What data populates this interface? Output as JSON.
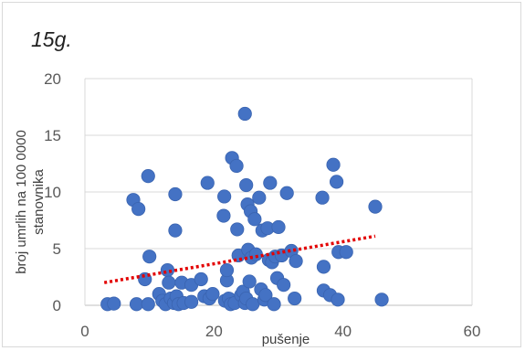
{
  "chart_data": {
    "type": "scatter",
    "title": "15g.",
    "xlabel": "pušenje",
    "ylabel_line1": "broj umrlih na 100 0000",
    "ylabel_line2": "stanovnika",
    "xlim": [
      0,
      60
    ],
    "ylim": [
      0,
      20
    ],
    "x_ticks": [
      "0",
      "20",
      "40",
      "60"
    ],
    "y_ticks": [
      "0",
      "5",
      "10",
      "15",
      "20"
    ],
    "grid": "horizontal",
    "marker_color": "#4472c4",
    "trendline": {
      "type": "linear",
      "style": "dotted",
      "color": "#e30000",
      "x": [
        3,
        45
      ],
      "y": [
        2.0,
        6.1
      ]
    },
    "points": [
      [
        3.5,
        0.1
      ],
      [
        4.5,
        0.15
      ],
      [
        7.5,
        9.3
      ],
      [
        8.0,
        0.1
      ],
      [
        8.3,
        8.5
      ],
      [
        9.3,
        2.3
      ],
      [
        9.8,
        11.4
      ],
      [
        9.8,
        0.1
      ],
      [
        10.0,
        4.3
      ],
      [
        11.5,
        1.0
      ],
      [
        12.0,
        0.4
      ],
      [
        12.5,
        0.1
      ],
      [
        12.8,
        3.1
      ],
      [
        13.0,
        2.0
      ],
      [
        13.3,
        0.6
      ],
      [
        13.8,
        0.2
      ],
      [
        14.0,
        9.8
      ],
      [
        14.0,
        6.6
      ],
      [
        14.2,
        0.8
      ],
      [
        14.5,
        0.1
      ],
      [
        15.0,
        2.0
      ],
      [
        15.3,
        0.2
      ],
      [
        16.5,
        1.8
      ],
      [
        16.5,
        0.3
      ],
      [
        18.0,
        2.3
      ],
      [
        18.5,
        0.8
      ],
      [
        19.0,
        10.8
      ],
      [
        19.3,
        0.6
      ],
      [
        19.8,
        1.0
      ],
      [
        21.5,
        7.9
      ],
      [
        21.6,
        9.6
      ],
      [
        21.7,
        0.4
      ],
      [
        22.0,
        2.2
      ],
      [
        22.0,
        3.1
      ],
      [
        22.3,
        0.6
      ],
      [
        22.6,
        0.1
      ],
      [
        22.8,
        13.0
      ],
      [
        23.2,
        0.2
      ],
      [
        23.5,
        12.3
      ],
      [
        23.6,
        6.7
      ],
      [
        23.8,
        4.4
      ],
      [
        24.2,
        0.9
      ],
      [
        24.5,
        1.2
      ],
      [
        24.8,
        16.9
      ],
      [
        24.8,
        0.2
      ],
      [
        25.0,
        0.6
      ],
      [
        25.0,
        10.6
      ],
      [
        25.2,
        8.9
      ],
      [
        25.3,
        4.9
      ],
      [
        25.5,
        2.1
      ],
      [
        25.7,
        8.3
      ],
      [
        25.8,
        4.2
      ],
      [
        26.0,
        0.1
      ],
      [
        26.3,
        7.6
      ],
      [
        26.5,
        4.5
      ],
      [
        27.0,
        9.5
      ],
      [
        27.3,
        1.4
      ],
      [
        27.5,
        6.6
      ],
      [
        27.8,
        0.5
      ],
      [
        28.0,
        0.9
      ],
      [
        28.3,
        6.8
      ],
      [
        28.5,
        4.0
      ],
      [
        28.7,
        10.8
      ],
      [
        29.0,
        3.8
      ],
      [
        29.3,
        0.1
      ],
      [
        29.5,
        4.3
      ],
      [
        29.8,
        2.4
      ],
      [
        30.0,
        6.9
      ],
      [
        30.5,
        4.4
      ],
      [
        30.8,
        1.8
      ],
      [
        31.3,
        9.9
      ],
      [
        32.0,
        4.8
      ],
      [
        32.5,
        0.6
      ],
      [
        32.7,
        3.9
      ],
      [
        36.8,
        9.5
      ],
      [
        37.0,
        3.4
      ],
      [
        37.0,
        1.3
      ],
      [
        38.0,
        0.9
      ],
      [
        38.5,
        12.4
      ],
      [
        39.0,
        10.9
      ],
      [
        39.2,
        0.5
      ],
      [
        39.3,
        4.7
      ],
      [
        40.5,
        4.7
      ],
      [
        45.0,
        8.7
      ],
      [
        46.0,
        0.5
      ]
    ]
  }
}
